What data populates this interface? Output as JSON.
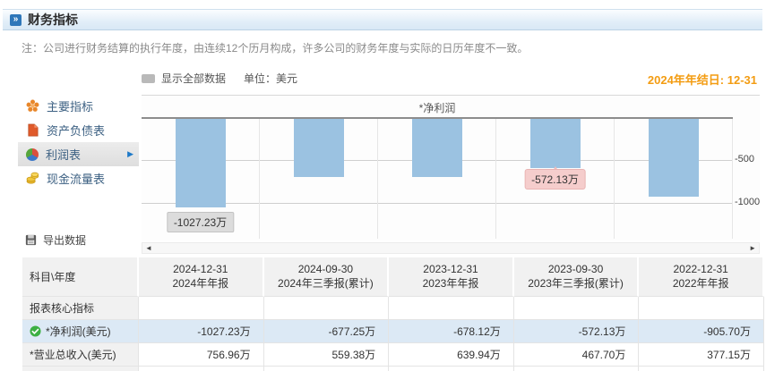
{
  "header": {
    "title": "财务指标"
  },
  "note": "注：公司进行财务结算的执行年度，由连续12个历月构成，许多公司的财务年度与实际的日历年度不一致。",
  "toolbar": {
    "show_all": "显示全部数据",
    "unit": "单位：美元",
    "fiscal_year_end": "2024年年结日: 12-31"
  },
  "icons": {
    "header_arrow": "»",
    "selected_arrow": "▶",
    "scroll_left": "◄",
    "scroll_right": "►"
  },
  "colors": {
    "accent_orange": "#f39c12",
    "bar_blue": "#9bc2e1",
    "highlight_row": "#dce9f5",
    "label_gray_bg": "#dcdcdc",
    "label_pink_bg": "#f5cdcc",
    "green_check": "#3cb043"
  },
  "sidebar": {
    "items": [
      {
        "label": "主要指标",
        "icon": "flower-icon",
        "selected": false
      },
      {
        "label": "资产负债表",
        "icon": "document-icon",
        "selected": false
      },
      {
        "label": "利润表",
        "icon": "sphere-icon",
        "selected": true
      },
      {
        "label": "现金流量表",
        "icon": "coins-icon",
        "selected": false
      }
    ],
    "export_label": "导出数据"
  },
  "chart_data": {
    "type": "bar",
    "title": "*净利润",
    "categories": [
      "2024-12-31",
      "2024-09-30",
      "2023-12-31",
      "2023-09-30",
      "2022-12-31"
    ],
    "values": [
      -1027.23,
      -677.25,
      -678.12,
      -572.13,
      -905.7
    ],
    "unit": "万",
    "ylim": [
      -1250,
      0
    ],
    "yticks": [
      -500,
      -1000
    ],
    "ytick_labels": [
      "-500",
      "-1000"
    ],
    "legend": "none",
    "grid": "on",
    "labels": [
      {
        "index": 0,
        "text": "-1027.23万",
        "style": "gray"
      },
      {
        "index": 3,
        "text": "-572.13万",
        "style": "pink"
      }
    ]
  },
  "table": {
    "corner": "科目\\年度",
    "columns": [
      {
        "date": "2024-12-31",
        "period": "2024年年报"
      },
      {
        "date": "2024-09-30",
        "period": "2024年三季报(累计)"
      },
      {
        "date": "2023-12-31",
        "period": "2023年年报"
      },
      {
        "date": "2023-09-30",
        "period": "2023年三季报(累计)"
      },
      {
        "date": "2022-12-31",
        "period": "2022年年报"
      }
    ],
    "rows": [
      {
        "label": "报表核心指标",
        "type": "section",
        "values": [
          "",
          "",
          "",
          "",
          ""
        ]
      },
      {
        "label": "*净利润(美元)",
        "type": "highlight",
        "icon": "check-icon",
        "values": [
          "-1027.23万",
          "-677.25万",
          "-678.12万",
          "-572.13万",
          "-905.70万"
        ]
      },
      {
        "label": "*营业总收入(美元)",
        "type": "normal",
        "values": [
          "756.96万",
          "559.38万",
          "639.94万",
          "467.70万",
          "377.15万"
        ]
      }
    ]
  }
}
